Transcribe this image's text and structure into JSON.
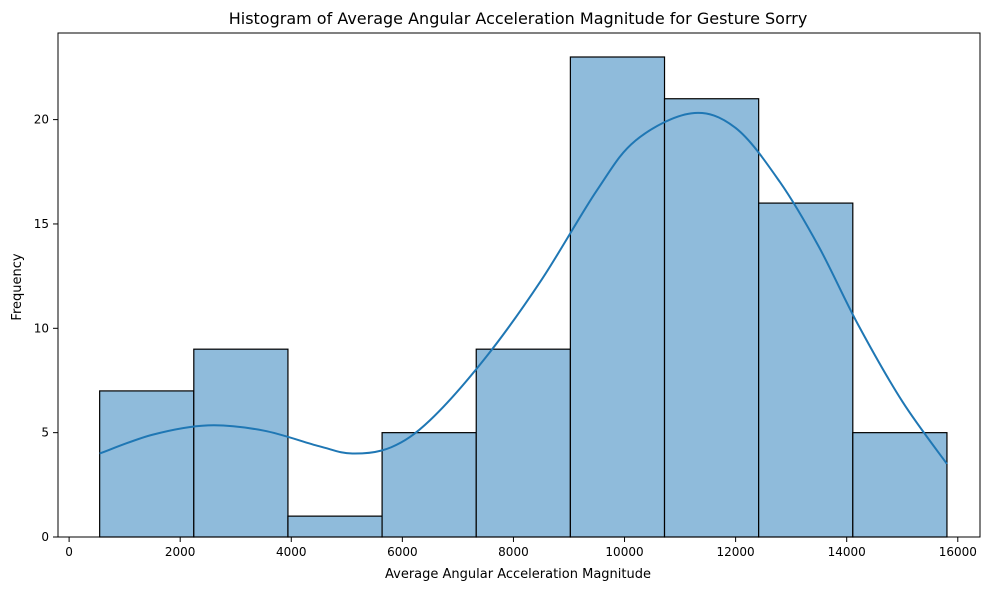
{
  "chart_data": {
    "type": "bar",
    "title": "Histogram of Average Angular Acceleration Magnitude for Gesture Sorry",
    "xlabel": "Average Angular Acceleration Magnitude",
    "ylabel": "Frequency",
    "xlim": [
      -200,
      16400
    ],
    "ylim": [
      0,
      24.15
    ],
    "xticks": [
      0,
      2000,
      4000,
      6000,
      8000,
      10000,
      12000,
      14000,
      16000
    ],
    "yticks": [
      0,
      5,
      10,
      15,
      20
    ],
    "bins": [
      {
        "x0": 550,
        "x1": 2245,
        "count": 7
      },
      {
        "x0": 2245,
        "x1": 3940,
        "count": 9
      },
      {
        "x0": 3940,
        "x1": 5635,
        "count": 1
      },
      {
        "x0": 5635,
        "x1": 7330,
        "count": 5
      },
      {
        "x0": 7330,
        "x1": 9025,
        "count": 9
      },
      {
        "x0": 9025,
        "x1": 10720,
        "count": 23
      },
      {
        "x0": 10720,
        "x1": 12415,
        "count": 21
      },
      {
        "x0": 12415,
        "x1": 14110,
        "count": 16
      },
      {
        "x0": 14110,
        "x1": 15805,
        "count": 5
      }
    ],
    "kde": {
      "x": [
        550,
        1500,
        2500,
        3500,
        4500,
        5100,
        5800,
        6500,
        7500,
        8500,
        9500,
        10200,
        11200,
        12000,
        12800,
        13500,
        14200,
        15000,
        15805
      ],
      "y": [
        4.0,
        4.9,
        5.35,
        5.1,
        4.35,
        4.0,
        4.3,
        5.6,
        8.6,
        12.3,
        16.6,
        19.0,
        20.3,
        19.6,
        17.0,
        13.9,
        10.2,
        6.5,
        3.5
      ]
    },
    "bar_color": "#8fbbdb",
    "bar_edge_color": "#000000",
    "kde_color": "#1f77b4",
    "grid": false,
    "legend": "none"
  }
}
